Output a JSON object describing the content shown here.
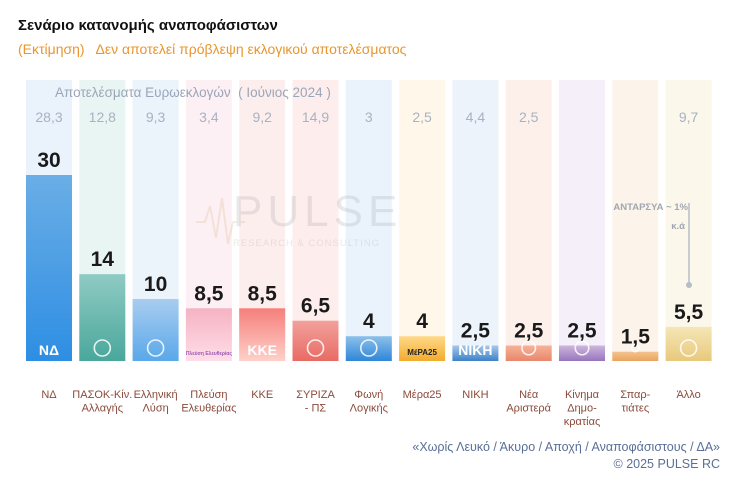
{
  "header": {
    "title": "Σενάριο κατανομής αναποφάσιστων",
    "subtitle_left": "(Εκτίμηση)",
    "subtitle_right": "Δεν αποτελεί πρόβλεψη εκλογικού αποτελέσματος"
  },
  "euro_results_heading": "Αποτελέσματα Ευρωεκλογών  ( Ιούνιος 2024 )",
  "watermark": {
    "brand": "PULSE",
    "tagline": "RESEARCH & CONSULTING"
  },
  "annotation": {
    "line1": "ΑΝΤΑΡΣΥΑ ~ 1%",
    "line2": "κ.ά"
  },
  "footer": {
    "note": "«Χωρίς Λευκό / Άκυρο / Αποχή / Αναποφάσιστους / ΔΑ»",
    "copyright": "©  2025  PULSE RC"
  },
  "chart_data": {
    "type": "bar",
    "title": "Σενάριο κατανομής αναποφάσιστων",
    "categories": [
      "ΝΔ",
      "ΠΑΣΟΚ-Κίν. Αλλαγής",
      "Ελληνική Λύση",
      "Πλεύση Ελευθερίας",
      "ΚΚΕ",
      "ΣΥΡΙΖΑ - ΠΣ",
      "Φωνή Λογικής",
      "Μέρα25",
      "ΝΙΚΗ",
      "Νέα Αριστερά",
      "Κίνημα Δημο- κρατίας",
      "Σπαρ- τιάτες",
      "Άλλο"
    ],
    "category_lines": [
      [
        "ΝΔ"
      ],
      [
        "ΠΑΣΟΚ-Κίν.",
        "Αλλαγής"
      ],
      [
        "Ελληνική",
        "Λύση"
      ],
      [
        "Πλεύση",
        "Ελευθερίας"
      ],
      [
        "ΚΚΕ"
      ],
      [
        "ΣΥΡΙΖΑ",
        "- ΠΣ"
      ],
      [
        "Φωνή",
        "Λογικής"
      ],
      [
        "Μέρα25"
      ],
      [
        "ΝΙΚΗ"
      ],
      [
        "Νέα",
        "Αριστερά"
      ],
      [
        "Κίνημα",
        "Δημο-",
        "κρατίας"
      ],
      [
        "Σπαρ-",
        "τιάτες"
      ],
      [
        "Άλλο"
      ]
    ],
    "series": [
      {
        "values": [
          30,
          14,
          10,
          8.5,
          8.5,
          6.5,
          4,
          4,
          2.5,
          2.5,
          2.5,
          1.5,
          5.5
        ]
      },
      {
        "values": [
          28.3,
          12.8,
          9.3,
          3.4,
          9.2,
          14.9,
          3,
          2.5,
          4.4,
          2.5,
          null,
          null,
          9.7
        ]
      }
    ],
    "value_labels": [
      "30",
      "14",
      "10",
      "8,5",
      "8,5",
      "6,5",
      "4",
      "4",
      "2,5",
      "2,5",
      "2,5",
      "1,5",
      "5,5"
    ],
    "euro_labels": [
      "28,3",
      "12,8",
      "9,3",
      "3,4",
      "9,2",
      "14,9",
      "3",
      "2,5",
      "4,4",
      "2,5",
      "",
      "",
      "9,7"
    ],
    "logo_labels": [
      "ΝΔ",
      "",
      "",
      "Πλεύση Ελευθερίας",
      "ΚΚΕ",
      "",
      "",
      "ΜέΡΑ25",
      "ΝΙΚΗ",
      "",
      "",
      "",
      ""
    ],
    "colors": {
      "top": [
        "#6aaee6",
        "#8fcbc4",
        "#a8cdef",
        "#f5b3c3",
        "#f57f7b",
        "#f2a19c",
        "#8dc0ea",
        "#ffd98a",
        "#a6c8ea",
        "#f6b39a",
        "#cdb6de",
        "#f3c38f",
        "#f5e6b6"
      ],
      "bottom": [
        "#2e8ee3",
        "#4aa79b",
        "#5aa8ea",
        "#ffdde8",
        "#ffd0c9",
        "#e86b64",
        "#2f86d8",
        "#f3ac2c",
        "#3c82c9",
        "#e8866a",
        "#9775bd",
        "#e9a45d",
        "#e8c97c"
      ],
      "column_bg": [
        "#eaf3fc",
        "#e9f5f3",
        "#ebf3fb",
        "#fdf0f4",
        "#fdeeee",
        "#fdeeed",
        "#eaf3fc",
        "#fff8ea",
        "#ecf3fb",
        "#fdf0eb",
        "#f4eff9",
        "#fcf3ea",
        "#fbf7ea"
      ],
      "label": "#1a1a1a",
      "category_text": "#8a4a3a",
      "euro_text": "#a7b2c3",
      "accent": "#e8962e",
      "footer": "#5a6f97"
    },
    "ylim": [
      0,
      30
    ],
    "xlabel": "",
    "ylabel": ""
  }
}
